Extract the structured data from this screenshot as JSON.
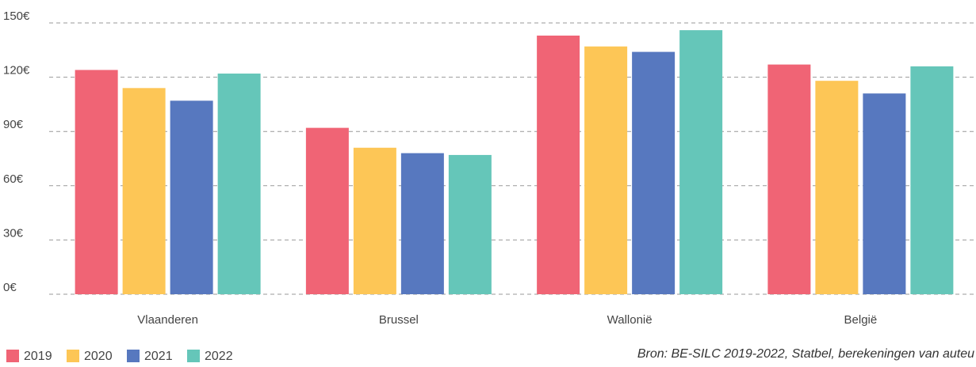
{
  "chart_data": {
    "type": "bar",
    "categories": [
      "Vlaanderen",
      "Brussel",
      "Wallonië",
      "België"
    ],
    "series": [
      {
        "name": "2019",
        "color": "#f06475",
        "values": [
          124,
          92,
          143,
          127
        ]
      },
      {
        "name": "2020",
        "color": "#fdc656",
        "values": [
          114,
          81,
          137,
          118
        ]
      },
      {
        "name": "2021",
        "color": "#5778bf",
        "values": [
          107,
          78,
          134,
          111
        ]
      },
      {
        "name": "2022",
        "color": "#65c6b9",
        "values": [
          122,
          77,
          146,
          126
        ]
      }
    ],
    "ylim": [
      0,
      150
    ],
    "yticks": [
      {
        "value": 0,
        "label": "0€"
      },
      {
        "value": 30,
        "label": "30€"
      },
      {
        "value": 60,
        "label": "60€"
      },
      {
        "value": 90,
        "label": "90€"
      },
      {
        "value": 120,
        "label": "120€"
      },
      {
        "value": 150,
        "label": "150€"
      }
    ],
    "grid": true,
    "legend": "bottom-left",
    "source": "Bron: BE-SILC 2019-2022, Statbel, berekeningen van auteu"
  }
}
